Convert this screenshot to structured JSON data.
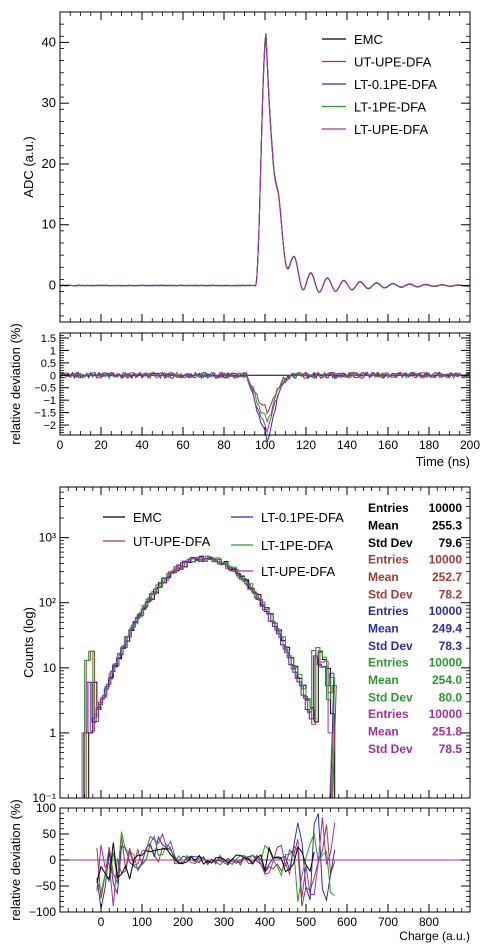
{
  "colors": {
    "EMC": "#000000",
    "UT-UPE-DFA": "#a33a3a",
    "LT-0.1PE-DFA": "#2e2e9e",
    "LT-1PE-DFA": "#2a9a2a",
    "LT-UPE-DFA": "#a030a0"
  },
  "chart_data": [
    {
      "id": "waveform",
      "type": "line",
      "ylabel": "ADC (a.u.)",
      "xlabel": "",
      "xlim": [
        0,
        200
      ],
      "ylim": [
        -6,
        45
      ],
      "yticks": [
        0,
        10,
        20,
        30,
        40
      ],
      "ytick_labels": [
        "0",
        "10",
        "20",
        "30",
        "40"
      ],
      "legend": [
        "EMC",
        "UT-UPE-DFA",
        "LT-0.1PE-DFA",
        "LT-1PE-DFA",
        "LT-UPE-DFA"
      ],
      "legend_position": "top-right",
      "waveform": {
        "baseline": 0,
        "peak_time": 100.5,
        "peak_value": 41.5,
        "rise_time": 5,
        "fall_decay_ns": 5,
        "undershoot": -2.5,
        "undershoot_time": 110,
        "ringing_period_ns": 8,
        "ringing_decay_ns": 25
      },
      "series": [
        {
          "name": "EMC",
          "peak": 41.5
        },
        {
          "name": "UT-UPE-DFA",
          "peak": 41.3
        },
        {
          "name": "LT-0.1PE-DFA",
          "peak": 40.9
        },
        {
          "name": "LT-1PE-DFA",
          "peak": 41.1
        },
        {
          "name": "LT-UPE-DFA",
          "peak": 40.7
        }
      ]
    },
    {
      "id": "waveform-deviation",
      "type": "line",
      "ylabel": "relative deviation (%)",
      "xlabel": "Time (ns)",
      "xlim": [
        0,
        200
      ],
      "ylim": [
        -2.4,
        1.7
      ],
      "xticks": [
        0,
        20,
        40,
        60,
        80,
        100,
        120,
        140,
        160,
        180,
        200
      ],
      "xtick_labels": [
        "0",
        "20",
        "40",
        "60",
        "80",
        "100",
        "120",
        "140",
        "160",
        "180",
        "200"
      ],
      "yticks": [
        -2,
        -1.5,
        -1,
        -0.5,
        0,
        0.5,
        1,
        1.5
      ],
      "ytick_labels": [
        "−2",
        "−1.5",
        "−1",
        "−0.5",
        "0",
        "0.5",
        "1",
        "1.5"
      ],
      "series": [
        {
          "name": "EMC",
          "dip_min": 0
        },
        {
          "name": "UT-UPE-DFA",
          "dip_min": -1.3
        },
        {
          "name": "LT-0.1PE-DFA",
          "dip_min": -2.2
        },
        {
          "name": "LT-1PE-DFA",
          "dip_min": -1.6
        },
        {
          "name": "LT-UPE-DFA",
          "dip_min": -1.9
        }
      ],
      "dip_center": 100,
      "dip_width": 6
    },
    {
      "id": "charge-histogram",
      "type": "bar",
      "ylabel": "Counts (log)",
      "xlabel": "",
      "scale_y": "log",
      "xlim": [
        -100,
        900
      ],
      "ylim": [
        0.1,
        6000
      ],
      "yticks": [
        0.1,
        1,
        10,
        100,
        1000
      ],
      "ytick_labels": [
        "10⁻¹",
        "1",
        "10",
        "10²",
        "10³"
      ],
      "legend": [
        "EMC",
        "UT-UPE-DFA",
        "LT-0.1PE-DFA",
        "LT-1PE-DFA",
        "LT-UPE-DFA"
      ],
      "histogram": {
        "bin_width": 10,
        "peak_counts": 480,
        "lower_edge": -30,
        "upper_edge": 570
      },
      "series": [
        {
          "name": "EMC",
          "entries": 10000,
          "mean": 255.3,
          "std": 79.6,
          "shift": 0
        },
        {
          "name": "UT-UPE-DFA",
          "entries": 10000,
          "mean": 252.7,
          "std": 78.2,
          "shift": -3
        },
        {
          "name": "LT-0.1PE-DFA",
          "entries": 10000,
          "mean": 249.4,
          "std": 78.3,
          "shift": -6
        },
        {
          "name": "LT-1PE-DFA",
          "entries": 10000,
          "mean": 254.0,
          "std": 80.0,
          "shift": -1
        },
        {
          "name": "LT-UPE-DFA",
          "entries": 10000,
          "mean": 251.8,
          "std": 78.5,
          "shift": -4
        }
      ]
    },
    {
      "id": "charge-deviation",
      "type": "line",
      "ylabel": "relative deviation (%)",
      "xlabel": "Charge (a.u.)",
      "xlim": [
        -100,
        900
      ],
      "ylim": [
        -100,
        100
      ],
      "xticks": [
        0,
        100,
        200,
        300,
        400,
        500,
        600,
        700,
        800
      ],
      "xtick_labels": [
        "0",
        "100",
        "200",
        "300",
        "400",
        "500",
        "600",
        "700",
        "800"
      ],
      "yticks": [
        -100,
        -50,
        0,
        50,
        100
      ],
      "ytick_labels": [
        "−100",
        "−50",
        "0",
        "50",
        "100"
      ]
    }
  ],
  "stats_boxes": [
    {
      "name": "EMC",
      "entries_label": "Entries",
      "entries": "10000",
      "mean_label": "Mean",
      "mean": "255.3",
      "std_label": "Std Dev",
      "std": "79.6"
    },
    {
      "name": "UT-UPE-DFA",
      "entries_label": "Entries",
      "entries": "10000",
      "mean_label": "Mean",
      "mean": "252.7",
      "std_label": "Std Dev",
      "std": "78.2"
    },
    {
      "name": "LT-0.1PE-DFA",
      "entries_label": "Entries",
      "entries": "10000",
      "mean_label": "Mean",
      "mean": "249.4",
      "std_label": "Std Dev",
      "std": "78.3"
    },
    {
      "name": "LT-1PE-DFA",
      "entries_label": "Entries",
      "entries": "10000",
      "mean_label": "Mean",
      "mean": "254.0",
      "std_label": "Std Dev",
      "std": "80.0"
    },
    {
      "name": "LT-UPE-DFA",
      "entries_label": "Entries",
      "entries": "10000",
      "mean_label": "Mean",
      "mean": "251.8",
      "std_label": "Std Dev",
      "std": "78.5"
    }
  ]
}
